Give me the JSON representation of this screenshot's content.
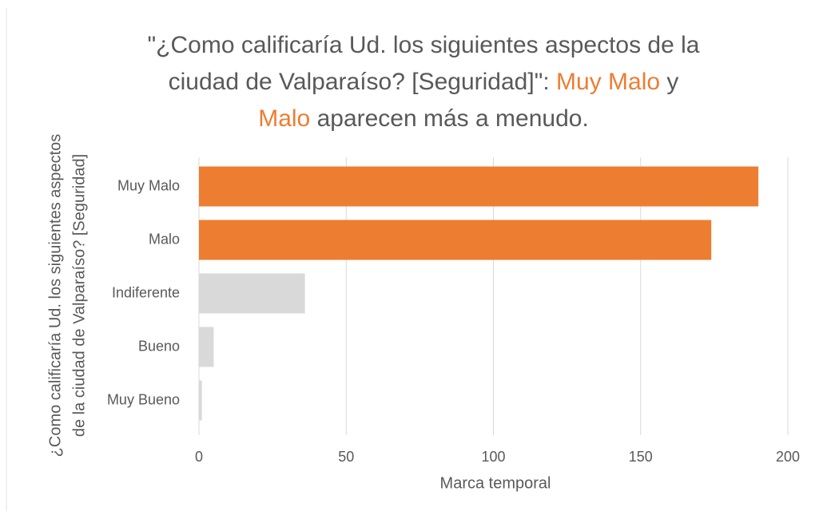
{
  "chart_data": {
    "type": "barh",
    "title": [
      [
        {
          "text": "\"¿Como calificaría Ud. los siguientes aspectos de la",
          "color": "#595959"
        }
      ],
      [
        {
          "text": "ciudad de Valparaíso? [Seguridad]\": ",
          "color": "#595959"
        },
        {
          "text": "Muy Malo",
          "color": "#ed7d31"
        },
        {
          "text": " y",
          "color": "#595959"
        }
      ],
      [
        {
          "text": "Malo",
          "color": "#ed7d31"
        },
        {
          "text": " aparecen más a menudo.",
          "color": "#595959"
        }
      ]
    ],
    "ylabel": [
      "¿Como calificaría Ud. los siguientes aspectos",
      "de la ciudad de Valparaíso? [Seguridad]"
    ],
    "xlabel": "Marca temporal",
    "categories": [
      "Muy Malo",
      "Malo",
      "Indiferente",
      "Bueno",
      "Muy Bueno"
    ],
    "values": [
      190,
      174,
      36,
      5,
      1
    ],
    "colors": [
      "#ed7d31",
      "#ed7d31",
      "#d9d9d9",
      "#d9d9d9",
      "#d9d9d9"
    ],
    "xlim": [
      0,
      200
    ],
    "xticks": [
      0,
      50,
      100,
      150,
      200
    ],
    "grid": true
  }
}
